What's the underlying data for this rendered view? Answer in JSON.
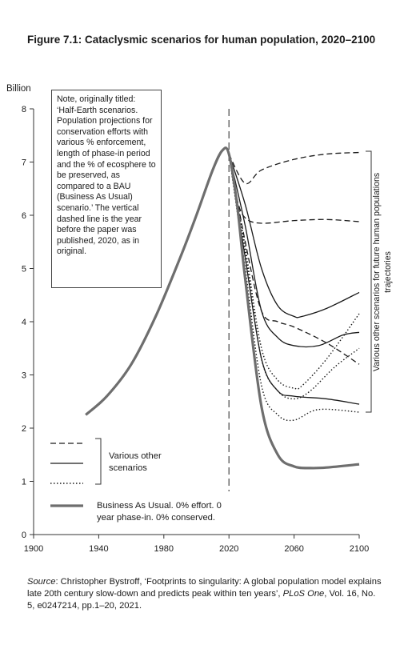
{
  "title": "Figure 7.1: Cataclysmic scenarios for human population, 2020–2100",
  "ylabel_unit": "Billion",
  "note": "Note, originally titled: ‘Half-Earth scenarios. Population projections for conservation efforts with various % enforcement, length of phase-in period and the % of ecosphere to be preserved, as compared to a BAU (Business As Usual) scenario.’ The vertical dashed line is the year before the paper was published, 2020, as in original.",
  "legend": {
    "various_other": "Various other scenarios",
    "bau": "Business As Usual. 0% effort. 0 year phase-in. 0% conserved."
  },
  "right_bracket_label": "Various other scenarios for future human populations trajectories",
  "source": {
    "label": "Source",
    "text": ": Christopher Bystroff, ‘Footprints to singularity: A global population model explains late 20th century slow-down and predicts peak within ten years’, ",
    "journal": "PLoS One",
    "rest": ", Vol. 16, No. 5, e0247214, pp.1–20, 2021."
  },
  "chart_data": {
    "type": "line",
    "xlim": [
      1900,
      2100
    ],
    "ylim": [
      0,
      8
    ],
    "xticks": [
      1900,
      1940,
      1980,
      2020,
      2060,
      2100
    ],
    "yticks": [
      0,
      1,
      2,
      3,
      4,
      5,
      6,
      7,
      8
    ],
    "reference_line_x": 2020,
    "colors": {
      "bau": "#6e6e6e",
      "scenarios": "#1a1a1a"
    },
    "series": [
      {
        "name": "Business As Usual. 0% effort. 0 year phase-in. 0% conserved.",
        "style": "bau",
        "x": [
          1932,
          1945,
          1960,
          1975,
          1990,
          2000,
          2010,
          2016,
          2020,
          2025,
          2030,
          2040,
          2050,
          2060,
          2070,
          2080,
          2100
        ],
        "y": [
          2.25,
          2.6,
          3.2,
          4.1,
          5.2,
          6.0,
          6.85,
          7.22,
          7.15,
          6.2,
          4.8,
          2.4,
          1.5,
          1.28,
          1.25,
          1.26,
          1.32
        ]
      },
      {
        "style": "dashed",
        "x": [
          2020,
          2030,
          2040,
          2060,
          2080,
          2100
        ],
        "y": [
          7.15,
          6.6,
          6.85,
          7.05,
          7.15,
          7.18
        ]
      },
      {
        "style": "dashed",
        "x": [
          2020,
          2025,
          2030,
          2040,
          2060,
          2080,
          2100
        ],
        "y": [
          7.15,
          6.3,
          5.95,
          5.85,
          5.9,
          5.92,
          5.88
        ]
      },
      {
        "style": "dashed",
        "x": [
          2020,
          2030,
          2040,
          2050,
          2060,
          2080,
          2100
        ],
        "y": [
          7.15,
          5.5,
          4.2,
          4.0,
          3.9,
          3.6,
          3.2
        ]
      },
      {
        "style": "solid",
        "x": [
          2020,
          2030,
          2040,
          2050,
          2060,
          2065,
          2080,
          2100
        ],
        "y": [
          7.15,
          6.2,
          5.0,
          4.3,
          4.1,
          4.1,
          4.25,
          4.55
        ]
      },
      {
        "style": "solid",
        "x": [
          2020,
          2030,
          2040,
          2050,
          2060,
          2075,
          2090,
          2100
        ],
        "y": [
          7.15,
          5.8,
          4.2,
          3.7,
          3.55,
          3.55,
          3.75,
          3.8
        ]
      },
      {
        "style": "solid",
        "x": [
          2020,
          2030,
          2040,
          2050,
          2060,
          2080,
          2100
        ],
        "y": [
          7.15,
          5.2,
          3.3,
          2.7,
          2.6,
          2.55,
          2.45
        ]
      },
      {
        "style": "dotted",
        "x": [
          2020,
          2030,
          2040,
          2050,
          2060,
          2065,
          2080,
          2100
        ],
        "y": [
          7.15,
          5.4,
          3.5,
          2.9,
          2.75,
          2.8,
          3.3,
          4.15
        ]
      },
      {
        "style": "dotted",
        "x": [
          2020,
          2030,
          2040,
          2050,
          2060,
          2070,
          2085,
          2100
        ],
        "y": [
          7.15,
          5.3,
          3.3,
          2.7,
          2.55,
          2.7,
          3.15,
          3.5
        ]
      },
      {
        "style": "dotted",
        "x": [
          2020,
          2030,
          2040,
          2050,
          2060,
          2075,
          2100
        ],
        "y": [
          7.15,
          5.0,
          2.8,
          2.25,
          2.15,
          2.35,
          2.3
        ]
      }
    ]
  }
}
